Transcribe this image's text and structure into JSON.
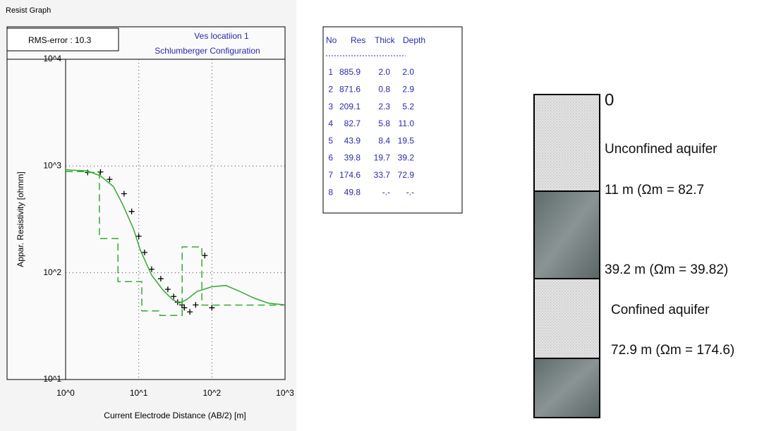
{
  "window_title": "Resist Graph",
  "chart_data": {
    "type": "line",
    "title": "Ves locatiion 1",
    "subtitle": "Schlumberger Configuration",
    "annotation": "RMS-error :  10.3",
    "x_label": "Current Electrode Distance (AB/2) [m]",
    "y_label": "Appar. Resistivity [ohmm]",
    "xscale": "log",
    "yscale": "log",
    "grid": true,
    "xlim": [
      1,
      1000
    ],
    "ylim": [
      10,
      10000
    ],
    "xticks": [
      {
        "value": 1,
        "label": "10^0"
      },
      {
        "value": 10,
        "label": "10^1"
      },
      {
        "value": 100,
        "label": "10^2"
      },
      {
        "value": 1000,
        "label": "10^3"
      }
    ],
    "yticks": [
      {
        "value": 10,
        "label": "10^1"
      },
      {
        "value": 100,
        "label": "10^2"
      },
      {
        "value": 1000,
        "label": "10^3"
      },
      {
        "value": 10000,
        "label": "10^4"
      }
    ],
    "series": [
      {
        "color": "#000000",
        "marker": "+",
        "x": [
          2,
          3,
          4,
          6.3,
          8,
          10,
          12,
          15,
          20,
          25,
          30,
          34,
          39,
          42,
          50,
          60,
          80,
          100
        ],
        "values": [
          870,
          880,
          750,
          550,
          375,
          220,
          155,
          108,
          88,
          70,
          60,
          53,
          50,
          47,
          43,
          50,
          145,
          47
        ]
      },
      {
        "color": "#33aa33",
        "x": [
          1,
          2,
          3,
          4.5,
          6,
          8.5,
          10.5,
          15,
          21,
          29,
          36,
          45,
          63,
          100,
          155,
          240,
          375,
          585,
          1000
        ],
        "values": [
          920,
          900,
          807,
          643,
          439,
          257,
          163,
          95,
          70,
          56,
          52,
          56,
          67,
          74,
          76,
          67,
          58,
          52,
          50
        ]
      },
      {
        "color": "#33aa33",
        "dash": true,
        "x": [
          1,
          2,
          2,
          2.9,
          2.9,
          5.2,
          5.2,
          11,
          11,
          19.5,
          19.5,
          39.2,
          39.2,
          72.9,
          72.9,
          1000
        ],
        "values": [
          885.9,
          885.9,
          871.6,
          871.6,
          209.1,
          209.1,
          82.7,
          82.7,
          43.9,
          43.9,
          39.8,
          39.8,
          174.6,
          174.6,
          49.8,
          49.8
        ]
      }
    ]
  },
  "table": {
    "headers": [
      "No",
      "Res",
      "Thick",
      "Depth"
    ],
    "rows": [
      [
        "1",
        "885.9",
        "2.0",
        "2.0"
      ],
      [
        "2",
        "871.6",
        "0.8",
        "2.9"
      ],
      [
        "3",
        "209.1",
        "2.3",
        "5.2"
      ],
      [
        "4",
        "82.7",
        "5.8",
        "11.0"
      ],
      [
        "5",
        "43.9",
        "8.4",
        "19.5"
      ],
      [
        "6",
        "39.8",
        "19.7",
        "39.2"
      ],
      [
        "7",
        "174.6",
        "33.7",
        "72.9"
      ],
      [
        "8",
        "49.8",
        "-.-",
        "-.-"
      ]
    ]
  },
  "column": {
    "labels": [
      "0",
      "Unconfined aquifer",
      "11 m (Ωm = 82.7",
      "39.2 m (Ωm = 39.82)",
      "Confined aquifer",
      "72.9 m (Ωm = 174.6)"
    ]
  }
}
